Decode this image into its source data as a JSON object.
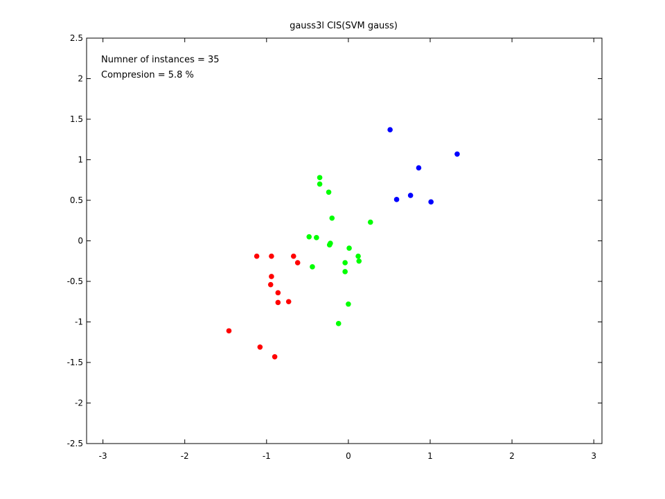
{
  "chart_data": {
    "type": "scatter",
    "title": "gauss3l CIS(SVM gauss)",
    "xlabel": "",
    "ylabel": "",
    "xlim": [
      -3.2,
      3.1
    ],
    "ylim": [
      -2.5,
      2.5
    ],
    "xticks": [
      -3,
      -2,
      -1,
      0,
      1,
      2,
      3
    ],
    "yticks": [
      -2.5,
      -2,
      -1.5,
      -1,
      -0.5,
      0,
      0.5,
      1,
      1.5,
      2,
      2.5
    ],
    "xtick_labels": [
      "-3",
      "-2",
      "-1",
      "0",
      "1",
      "2",
      "3"
    ],
    "ytick_labels": [
      "-2.5",
      "-2",
      "-1.5",
      "-1",
      "-0.5",
      "0",
      "0.5",
      "1",
      "1.5",
      "2",
      "2.5"
    ],
    "grid": false,
    "annotations": [
      "Numner of instances = 35",
      "Compresion = 5.8 %"
    ],
    "series": [
      {
        "color": "#ff0000",
        "points": [
          [
            -1.12,
            -0.19
          ],
          [
            -0.94,
            -0.19
          ],
          [
            -0.67,
            -0.19
          ],
          [
            -0.62,
            -0.27
          ],
          [
            -0.94,
            -0.44
          ],
          [
            -0.95,
            -0.54
          ],
          [
            -0.86,
            -0.64
          ],
          [
            -0.86,
            -0.76
          ],
          [
            -0.73,
            -0.75
          ],
          [
            -1.46,
            -1.11
          ],
          [
            -1.08,
            -1.31
          ],
          [
            -0.9,
            -1.43
          ]
        ]
      },
      {
        "color": "#00ff00",
        "points": [
          [
            -0.35,
            0.78
          ],
          [
            -0.35,
            0.7
          ],
          [
            -0.24,
            0.6
          ],
          [
            -0.2,
            0.28
          ],
          [
            -0.48,
            0.05
          ],
          [
            -0.39,
            0.04
          ],
          [
            -0.22,
            -0.03
          ],
          [
            -0.23,
            -0.05
          ],
          [
            -0.44,
            -0.32
          ],
          [
            0.01,
            -0.09
          ],
          [
            0.12,
            -0.19
          ],
          [
            0.13,
            -0.25
          ],
          [
            -0.04,
            -0.27
          ],
          [
            -0.04,
            -0.38
          ],
          [
            0.27,
            0.23
          ],
          [
            0.0,
            -0.78
          ],
          [
            -0.12,
            -1.02
          ]
        ]
      },
      {
        "color": "#0000ff",
        "points": [
          [
            0.51,
            1.37
          ],
          [
            1.33,
            1.07
          ],
          [
            0.86,
            0.9
          ],
          [
            0.59,
            0.51
          ],
          [
            0.76,
            0.56
          ],
          [
            1.01,
            0.48
          ]
        ]
      }
    ]
  }
}
